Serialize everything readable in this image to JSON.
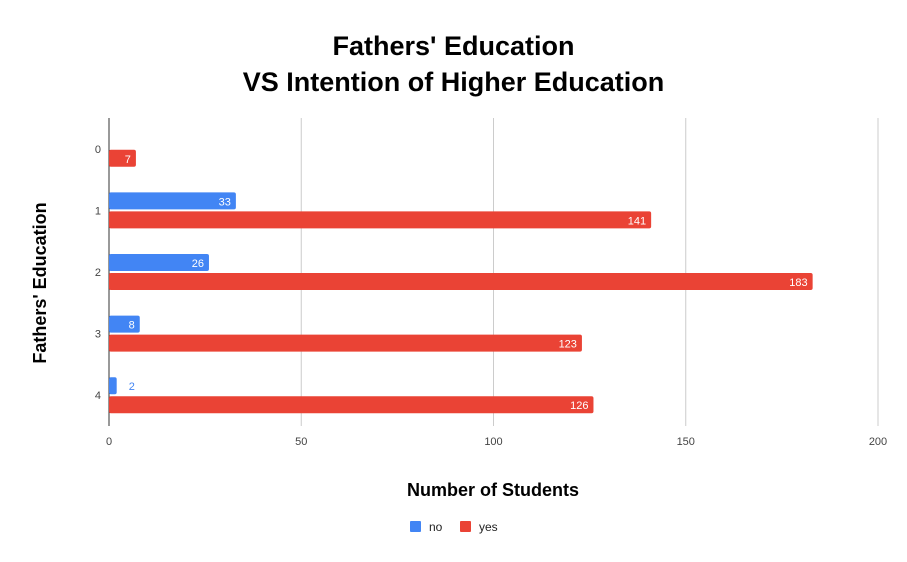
{
  "chart_data": {
    "type": "bar",
    "orientation": "horizontal",
    "title_line1": "Fathers' Education",
    "title_line2": "VS Intention of Higher Education",
    "xlabel": "Number of Students",
    "ylabel": "Fathers' Education",
    "categories": [
      "0",
      "1",
      "2",
      "3",
      "4"
    ],
    "series": [
      {
        "name": "no",
        "color": "#4285f4",
        "values": [
          0,
          33,
          26,
          8,
          2
        ]
      },
      {
        "name": "yes",
        "color": "#ea4335",
        "values": [
          7,
          141,
          183,
          123,
          126
        ]
      }
    ],
    "xlim": [
      0,
      200
    ],
    "xticks": [
      0,
      50,
      100,
      150,
      200
    ],
    "grid": true,
    "legend_position": "bottom"
  }
}
